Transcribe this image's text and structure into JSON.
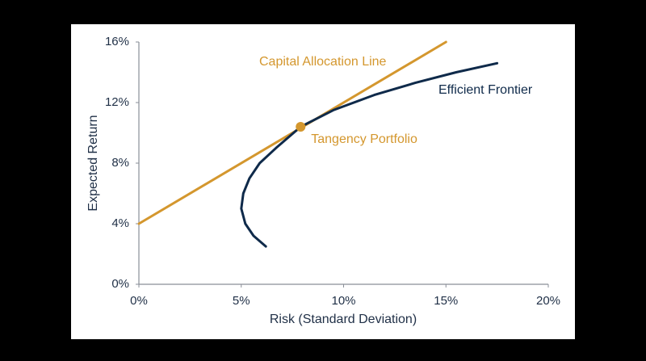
{
  "chart_data": {
    "type": "line",
    "x_label": "Risk (Standard Deviation)",
    "y_label": "Expected Return",
    "xlim": [
      0,
      20
    ],
    "ylim": [
      0,
      16
    ],
    "xticks": [
      {
        "value": 0,
        "label": "0%"
      },
      {
        "value": 5,
        "label": "5%"
      },
      {
        "value": 10,
        "label": "10%"
      },
      {
        "value": 15,
        "label": "15%"
      },
      {
        "value": 20,
        "label": "20%"
      }
    ],
    "yticks": [
      {
        "value": 0,
        "label": "0%"
      },
      {
        "value": 4,
        "label": "4%"
      },
      {
        "value": 8,
        "label": "8%"
      },
      {
        "value": 12,
        "label": "12%"
      },
      {
        "value": 16,
        "label": "16%"
      }
    ],
    "grid": false,
    "series": [
      {
        "name": "Capital Allocation Line",
        "color": "#d4972e",
        "x": [
          0,
          15
        ],
        "values": [
          4,
          16
        ]
      },
      {
        "name": "Efficient Frontier",
        "color": "#0f2a4a",
        "x": [
          6.2,
          5.6,
          5.2,
          5.0,
          5.1,
          5.4,
          5.9,
          6.7,
          7.9,
          9.5,
          11.5,
          13.5,
          15.5,
          17.5
        ],
        "values": [
          2.5,
          3.2,
          4.0,
          5.0,
          6.0,
          7.0,
          8.0,
          9.0,
          10.4,
          11.5,
          12.5,
          13.3,
          14.0,
          14.6
        ]
      }
    ],
    "tangency": {
      "label": "Tangency Portfolio",
      "x": 7.9,
      "y": 10.4,
      "color": "#d4972e"
    }
  }
}
